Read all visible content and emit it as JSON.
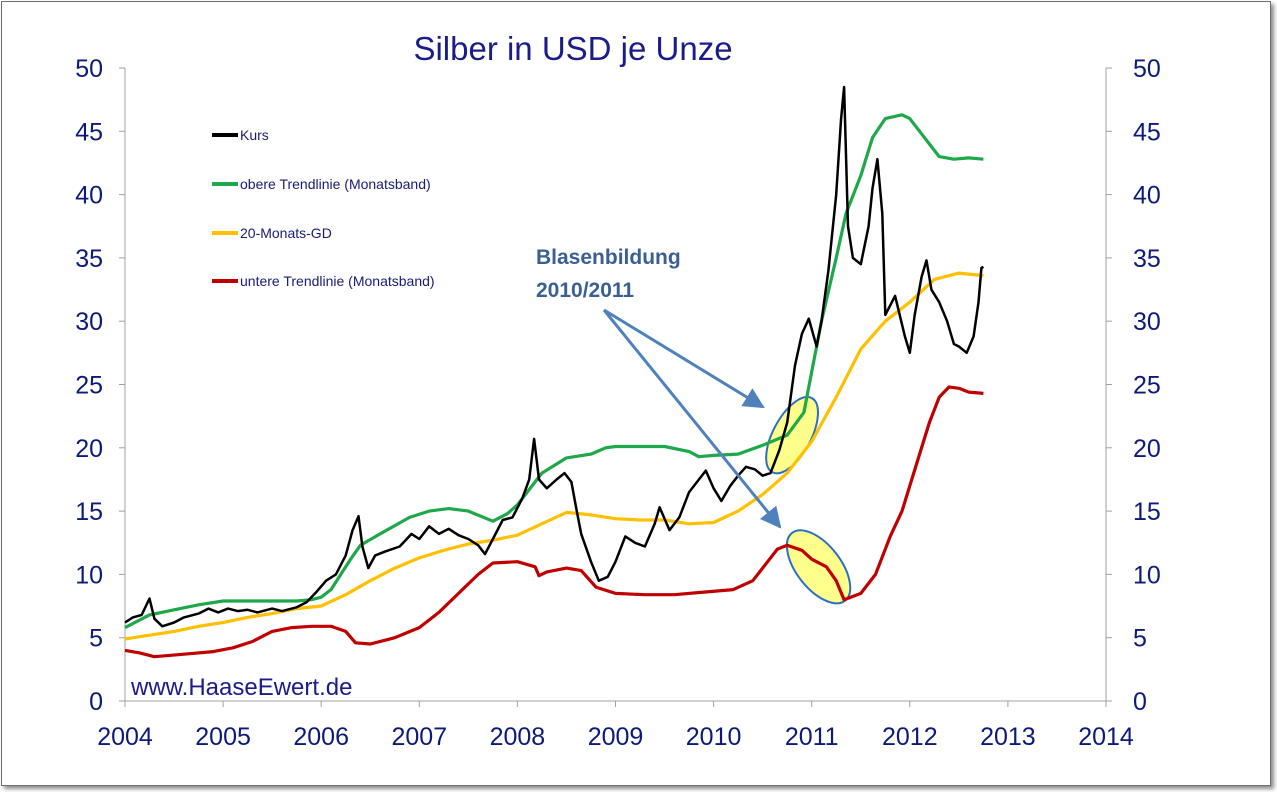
{
  "chart_data": {
    "type": "line",
    "title": "Silber in USD je Unze",
    "xlim": [
      2004,
      2014
    ],
    "ylim": [
      0,
      50
    ],
    "x_ticks": [
      2004,
      2005,
      2006,
      2007,
      2008,
      2009,
      2010,
      2011,
      2012,
      2013,
      2014
    ],
    "y_ticks": [
      0,
      5,
      10,
      15,
      20,
      25,
      30,
      35,
      40,
      45,
      50
    ],
    "secondary_y_axis": true,
    "grid": false,
    "legend_position": "top-left",
    "series": [
      {
        "name": "Kurs",
        "color": "#000000",
        "points": [
          [
            2004.0,
            6.2
          ],
          [
            2004.08,
            6.6
          ],
          [
            2004.17,
            6.8
          ],
          [
            2004.25,
            8.1
          ],
          [
            2004.3,
            6.5
          ],
          [
            2004.38,
            5.9
          ],
          [
            2004.5,
            6.2
          ],
          [
            2004.6,
            6.6
          ],
          [
            2004.75,
            6.9
          ],
          [
            2004.85,
            7.3
          ],
          [
            2004.95,
            7.0
          ],
          [
            2005.05,
            7.3
          ],
          [
            2005.15,
            7.1
          ],
          [
            2005.25,
            7.2
          ],
          [
            2005.35,
            7.0
          ],
          [
            2005.5,
            7.3
          ],
          [
            2005.6,
            7.1
          ],
          [
            2005.75,
            7.4
          ],
          [
            2005.85,
            7.8
          ],
          [
            2005.95,
            8.6
          ],
          [
            2006.05,
            9.5
          ],
          [
            2006.15,
            10.0
          ],
          [
            2006.25,
            11.5
          ],
          [
            2006.32,
            13.5
          ],
          [
            2006.38,
            14.6
          ],
          [
            2006.42,
            12.2
          ],
          [
            2006.48,
            10.5
          ],
          [
            2006.55,
            11.5
          ],
          [
            2006.65,
            11.8
          ],
          [
            2006.8,
            12.2
          ],
          [
            2006.92,
            13.2
          ],
          [
            2007.0,
            12.8
          ],
          [
            2007.1,
            13.8
          ],
          [
            2007.2,
            13.2
          ],
          [
            2007.3,
            13.6
          ],
          [
            2007.4,
            13.1
          ],
          [
            2007.5,
            12.8
          ],
          [
            2007.6,
            12.3
          ],
          [
            2007.67,
            11.6
          ],
          [
            2007.75,
            12.8
          ],
          [
            2007.85,
            14.3
          ],
          [
            2007.95,
            14.5
          ],
          [
            2008.05,
            16.0
          ],
          [
            2008.12,
            17.5
          ],
          [
            2008.17,
            20.7
          ],
          [
            2008.22,
            17.5
          ],
          [
            2008.3,
            16.8
          ],
          [
            2008.4,
            17.5
          ],
          [
            2008.48,
            18.0
          ],
          [
            2008.55,
            17.3
          ],
          [
            2008.6,
            15.2
          ],
          [
            2008.65,
            13.2
          ],
          [
            2008.75,
            11.0
          ],
          [
            2008.83,
            9.5
          ],
          [
            2008.92,
            9.8
          ],
          [
            2009.0,
            11.0
          ],
          [
            2009.1,
            13.0
          ],
          [
            2009.2,
            12.5
          ],
          [
            2009.3,
            12.2
          ],
          [
            2009.4,
            14.0
          ],
          [
            2009.45,
            15.3
          ],
          [
            2009.55,
            13.5
          ],
          [
            2009.65,
            14.5
          ],
          [
            2009.75,
            16.5
          ],
          [
            2009.85,
            17.5
          ],
          [
            2009.92,
            18.2
          ],
          [
            2010.0,
            16.8
          ],
          [
            2010.08,
            15.8
          ],
          [
            2010.17,
            17.0
          ],
          [
            2010.25,
            17.8
          ],
          [
            2010.33,
            18.5
          ],
          [
            2010.42,
            18.3
          ],
          [
            2010.5,
            17.8
          ],
          [
            2010.58,
            18.0
          ],
          [
            2010.67,
            19.8
          ],
          [
            2010.75,
            22.0
          ],
          [
            2010.83,
            26.5
          ],
          [
            2010.9,
            29.0
          ],
          [
            2010.97,
            30.2
          ],
          [
            2011.05,
            28.0
          ],
          [
            2011.1,
            30.0
          ],
          [
            2011.17,
            34.0
          ],
          [
            2011.25,
            40.0
          ],
          [
            2011.3,
            46.0
          ],
          [
            2011.33,
            48.5
          ],
          [
            2011.37,
            37.5
          ],
          [
            2011.42,
            35.0
          ],
          [
            2011.5,
            34.5
          ],
          [
            2011.58,
            37.5
          ],
          [
            2011.62,
            40.5
          ],
          [
            2011.67,
            42.8
          ],
          [
            2011.72,
            38.5
          ],
          [
            2011.75,
            30.5
          ],
          [
            2011.85,
            32.0
          ],
          [
            2011.95,
            28.8
          ],
          [
            2012.0,
            27.5
          ],
          [
            2012.05,
            30.5
          ],
          [
            2012.12,
            33.5
          ],
          [
            2012.17,
            34.8
          ],
          [
            2012.22,
            32.5
          ],
          [
            2012.3,
            31.5
          ],
          [
            2012.38,
            30.0
          ],
          [
            2012.45,
            28.2
          ],
          [
            2012.5,
            28.0
          ],
          [
            2012.58,
            27.5
          ],
          [
            2012.65,
            28.8
          ],
          [
            2012.7,
            31.5
          ],
          [
            2012.73,
            34.2
          ],
          [
            2012.75,
            34.3
          ]
        ]
      },
      {
        "name": "obere Trendlinie (Monatsband)",
        "color": "#1fa84a",
        "points": [
          [
            2004.0,
            5.8
          ],
          [
            2004.25,
            6.8
          ],
          [
            2004.5,
            7.2
          ],
          [
            2004.75,
            7.6
          ],
          [
            2005.0,
            7.9
          ],
          [
            2005.5,
            7.9
          ],
          [
            2005.75,
            7.9
          ],
          [
            2005.9,
            8.0
          ],
          [
            2006.0,
            8.2
          ],
          [
            2006.1,
            8.8
          ],
          [
            2006.2,
            10.0
          ],
          [
            2006.3,
            11.2
          ],
          [
            2006.4,
            12.3
          ],
          [
            2006.6,
            13.2
          ],
          [
            2006.9,
            14.5
          ],
          [
            2007.1,
            15.0
          ],
          [
            2007.3,
            15.2
          ],
          [
            2007.5,
            15.0
          ],
          [
            2007.75,
            14.2
          ],
          [
            2007.9,
            14.8
          ],
          [
            2008.0,
            15.5
          ],
          [
            2008.1,
            16.5
          ],
          [
            2008.25,
            18.0
          ],
          [
            2008.5,
            19.2
          ],
          [
            2008.75,
            19.5
          ],
          [
            2008.9,
            20.0
          ],
          [
            2009.0,
            20.1
          ],
          [
            2009.5,
            20.1
          ],
          [
            2009.75,
            19.7
          ],
          [
            2009.85,
            19.3
          ],
          [
            2010.0,
            19.4
          ],
          [
            2010.25,
            19.5
          ],
          [
            2010.5,
            20.2
          ],
          [
            2010.75,
            21.0
          ],
          [
            2010.92,
            22.8
          ],
          [
            2011.0,
            26.0
          ],
          [
            2011.1,
            30.0
          ],
          [
            2011.25,
            35.0
          ],
          [
            2011.35,
            38.5
          ],
          [
            2011.5,
            41.5
          ],
          [
            2011.62,
            44.5
          ],
          [
            2011.75,
            46.0
          ],
          [
            2011.92,
            46.3
          ],
          [
            2012.0,
            46.0
          ],
          [
            2012.1,
            45.0
          ],
          [
            2012.2,
            44.0
          ],
          [
            2012.3,
            43.0
          ],
          [
            2012.45,
            42.8
          ],
          [
            2012.6,
            42.9
          ],
          [
            2012.75,
            42.8
          ]
        ]
      },
      {
        "name": "20-Monats-GD",
        "color": "#ffc000",
        "points": [
          [
            2004.0,
            4.9
          ],
          [
            2004.25,
            5.2
          ],
          [
            2004.5,
            5.5
          ],
          [
            2004.75,
            5.9
          ],
          [
            2005.0,
            6.2
          ],
          [
            2005.25,
            6.6
          ],
          [
            2005.5,
            6.9
          ],
          [
            2005.75,
            7.3
          ],
          [
            2006.0,
            7.5
          ],
          [
            2006.25,
            8.4
          ],
          [
            2006.5,
            9.5
          ],
          [
            2006.75,
            10.5
          ],
          [
            2007.0,
            11.3
          ],
          [
            2007.25,
            11.9
          ],
          [
            2007.5,
            12.4
          ],
          [
            2007.75,
            12.7
          ],
          [
            2008.0,
            13.1
          ],
          [
            2008.25,
            14.0
          ],
          [
            2008.5,
            14.9
          ],
          [
            2008.75,
            14.7
          ],
          [
            2009.0,
            14.4
          ],
          [
            2009.25,
            14.3
          ],
          [
            2009.5,
            14.3
          ],
          [
            2009.75,
            14.0
          ],
          [
            2010.0,
            14.1
          ],
          [
            2010.25,
            15.0
          ],
          [
            2010.5,
            16.3
          ],
          [
            2010.75,
            18.0
          ],
          [
            2011.0,
            20.5
          ],
          [
            2011.25,
            24.0
          ],
          [
            2011.5,
            27.8
          ],
          [
            2011.75,
            30.0
          ],
          [
            2012.0,
            31.5
          ],
          [
            2012.25,
            33.3
          ],
          [
            2012.5,
            33.8
          ],
          [
            2012.75,
            33.6
          ]
        ]
      },
      {
        "name": "untere Trendlinie (Monatsband)",
        "color": "#c00000",
        "points": [
          [
            2004.0,
            4.0
          ],
          [
            2004.15,
            3.8
          ],
          [
            2004.3,
            3.5
          ],
          [
            2004.6,
            3.7
          ],
          [
            2004.9,
            3.9
          ],
          [
            2005.1,
            4.2
          ],
          [
            2005.3,
            4.7
          ],
          [
            2005.5,
            5.5
          ],
          [
            2005.7,
            5.8
          ],
          [
            2005.9,
            5.9
          ],
          [
            2006.1,
            5.9
          ],
          [
            2006.25,
            5.5
          ],
          [
            2006.35,
            4.6
          ],
          [
            2006.5,
            4.5
          ],
          [
            2006.75,
            5.0
          ],
          [
            2007.0,
            5.8
          ],
          [
            2007.2,
            7.0
          ],
          [
            2007.4,
            8.5
          ],
          [
            2007.6,
            10.0
          ],
          [
            2007.75,
            10.9
          ],
          [
            2008.0,
            11.0
          ],
          [
            2008.18,
            10.6
          ],
          [
            2008.22,
            9.9
          ],
          [
            2008.3,
            10.2
          ],
          [
            2008.5,
            10.5
          ],
          [
            2008.65,
            10.3
          ],
          [
            2008.8,
            9.0
          ],
          [
            2009.0,
            8.5
          ],
          [
            2009.3,
            8.4
          ],
          [
            2009.6,
            8.4
          ],
          [
            2009.9,
            8.6
          ],
          [
            2010.2,
            8.8
          ],
          [
            2010.4,
            9.5
          ],
          [
            2010.55,
            11.0
          ],
          [
            2010.65,
            12.0
          ],
          [
            2010.75,
            12.3
          ],
          [
            2010.9,
            11.9
          ],
          [
            2011.0,
            11.2
          ],
          [
            2011.15,
            10.6
          ],
          [
            2011.25,
            9.5
          ],
          [
            2011.33,
            8.0
          ],
          [
            2011.5,
            8.5
          ],
          [
            2011.65,
            10.0
          ],
          [
            2011.8,
            13.0
          ],
          [
            2011.92,
            15.0
          ],
          [
            2012.0,
            17.0
          ],
          [
            2012.1,
            19.5
          ],
          [
            2012.2,
            22.0
          ],
          [
            2012.3,
            24.0
          ],
          [
            2012.4,
            24.8
          ],
          [
            2012.5,
            24.7
          ],
          [
            2012.6,
            24.4
          ],
          [
            2012.75,
            24.3
          ]
        ]
      }
    ],
    "annotations": {
      "text_line1": "Blasenbildung",
      "text_line2": "2010/2011",
      "highlight_color": "#ffff66",
      "highlight_border": "#2f6fc0",
      "arrow_color": "#4f81bd"
    }
  },
  "watermark": "www.HaaseEwert.de"
}
